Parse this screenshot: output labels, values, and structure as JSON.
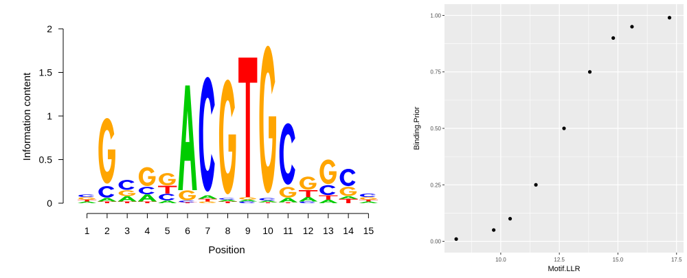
{
  "colors": {
    "A": "#00cc00",
    "C": "#0000ff",
    "G": "#ffa500",
    "T": "#ff0000",
    "panel_bg": "#ebebeb",
    "grid": "#ffffff",
    "point": "#000000"
  },
  "chart_data": [
    {
      "type": "sequence-logo",
      "xlabel": "Position",
      "ylabel": "Information content",
      "ylim": [
        0,
        2
      ],
      "yticks": [
        0,
        0.5,
        1,
        1.5,
        2
      ],
      "ytick_labels": [
        "0",
        "0.5",
        "1",
        "1.5",
        "2"
      ],
      "positions": [
        "1",
        "2",
        "3",
        "4",
        "5",
        "6",
        "7",
        "8",
        "9",
        "10",
        "11",
        "12",
        "13",
        "14",
        "15"
      ],
      "columns": [
        [
          [
            "A",
            0.02
          ],
          [
            "T",
            0.02
          ],
          [
            "G",
            0.03
          ],
          [
            "C",
            0.03
          ]
        ],
        [
          [
            "T",
            0.02
          ],
          [
            "A",
            0.04
          ],
          [
            "C",
            0.14
          ],
          [
            "G",
            0.8
          ]
        ],
        [
          [
            "T",
            0.02
          ],
          [
            "A",
            0.06
          ],
          [
            "G",
            0.07
          ],
          [
            "C",
            0.12
          ]
        ],
        [
          [
            "T",
            0.02
          ],
          [
            "A",
            0.08
          ],
          [
            "C",
            0.09
          ],
          [
            "G",
            0.23
          ]
        ],
        [
          [
            "A",
            0.03
          ],
          [
            "C",
            0.08
          ],
          [
            "T",
            0.09
          ],
          [
            "G",
            0.15
          ]
        ],
        [
          [
            "T",
            0.01
          ],
          [
            "C",
            0.02
          ],
          [
            "G",
            0.12
          ],
          [
            "A",
            1.2
          ]
        ],
        [
          [
            "G",
            0.02
          ],
          [
            "T",
            0.03
          ],
          [
            "A",
            0.04
          ],
          [
            "C",
            1.4
          ]
        ],
        [
          [
            "T",
            0.02
          ],
          [
            "A",
            0.02
          ],
          [
            "C",
            0.02
          ],
          [
            "G",
            1.4
          ]
        ],
        [
          [
            "C",
            0.02
          ],
          [
            "A",
            0.02
          ],
          [
            "G",
            0.03
          ],
          [
            "T",
            1.6
          ]
        ],
        [
          [
            "T",
            0.01
          ],
          [
            "A",
            0.02
          ],
          [
            "C",
            0.03
          ],
          [
            "G",
            1.8
          ]
        ],
        [
          [
            "T",
            0.01
          ],
          [
            "A",
            0.05
          ],
          [
            "G",
            0.13
          ],
          [
            "C",
            0.75
          ]
        ],
        [
          [
            "C",
            0.02
          ],
          [
            "A",
            0.05
          ],
          [
            "T",
            0.08
          ],
          [
            "G",
            0.16
          ]
        ],
        [
          [
            "A",
            0.04
          ],
          [
            "T",
            0.05
          ],
          [
            "C",
            0.12
          ],
          [
            "G",
            0.3
          ]
        ],
        [
          [
            "T",
            0.05
          ],
          [
            "A",
            0.03
          ],
          [
            "G",
            0.11
          ],
          [
            "C",
            0.21
          ]
        ],
        [
          [
            "A",
            0.02
          ],
          [
            "T",
            0.02
          ],
          [
            "G",
            0.03
          ],
          [
            "C",
            0.04
          ]
        ]
      ]
    },
    {
      "type": "scatter",
      "xlabel": "Motif.LLR",
      "ylabel": "Binding.Prior",
      "xlim": [
        7.6,
        17.8
      ],
      "ylim": [
        -0.05,
        1.05
      ],
      "xticks": [
        10.0,
        12.5,
        15.0,
        17.5
      ],
      "xtick_labels": [
        "10.0",
        "12.5",
        "15.0",
        "17.5"
      ],
      "yticks": [
        0,
        0.25,
        0.5,
        0.75,
        1.0
      ],
      "ytick_labels": [
        "0.00",
        "0.25",
        "0.50",
        "0.75",
        "1.00"
      ],
      "x": [
        8.1,
        9.7,
        10.4,
        11.5,
        12.7,
        13.8,
        14.8,
        15.6,
        17.2
      ],
      "y": [
        0.01,
        0.05,
        0.1,
        0.25,
        0.5,
        0.75,
        0.9,
        0.95,
        0.99
      ]
    }
  ]
}
